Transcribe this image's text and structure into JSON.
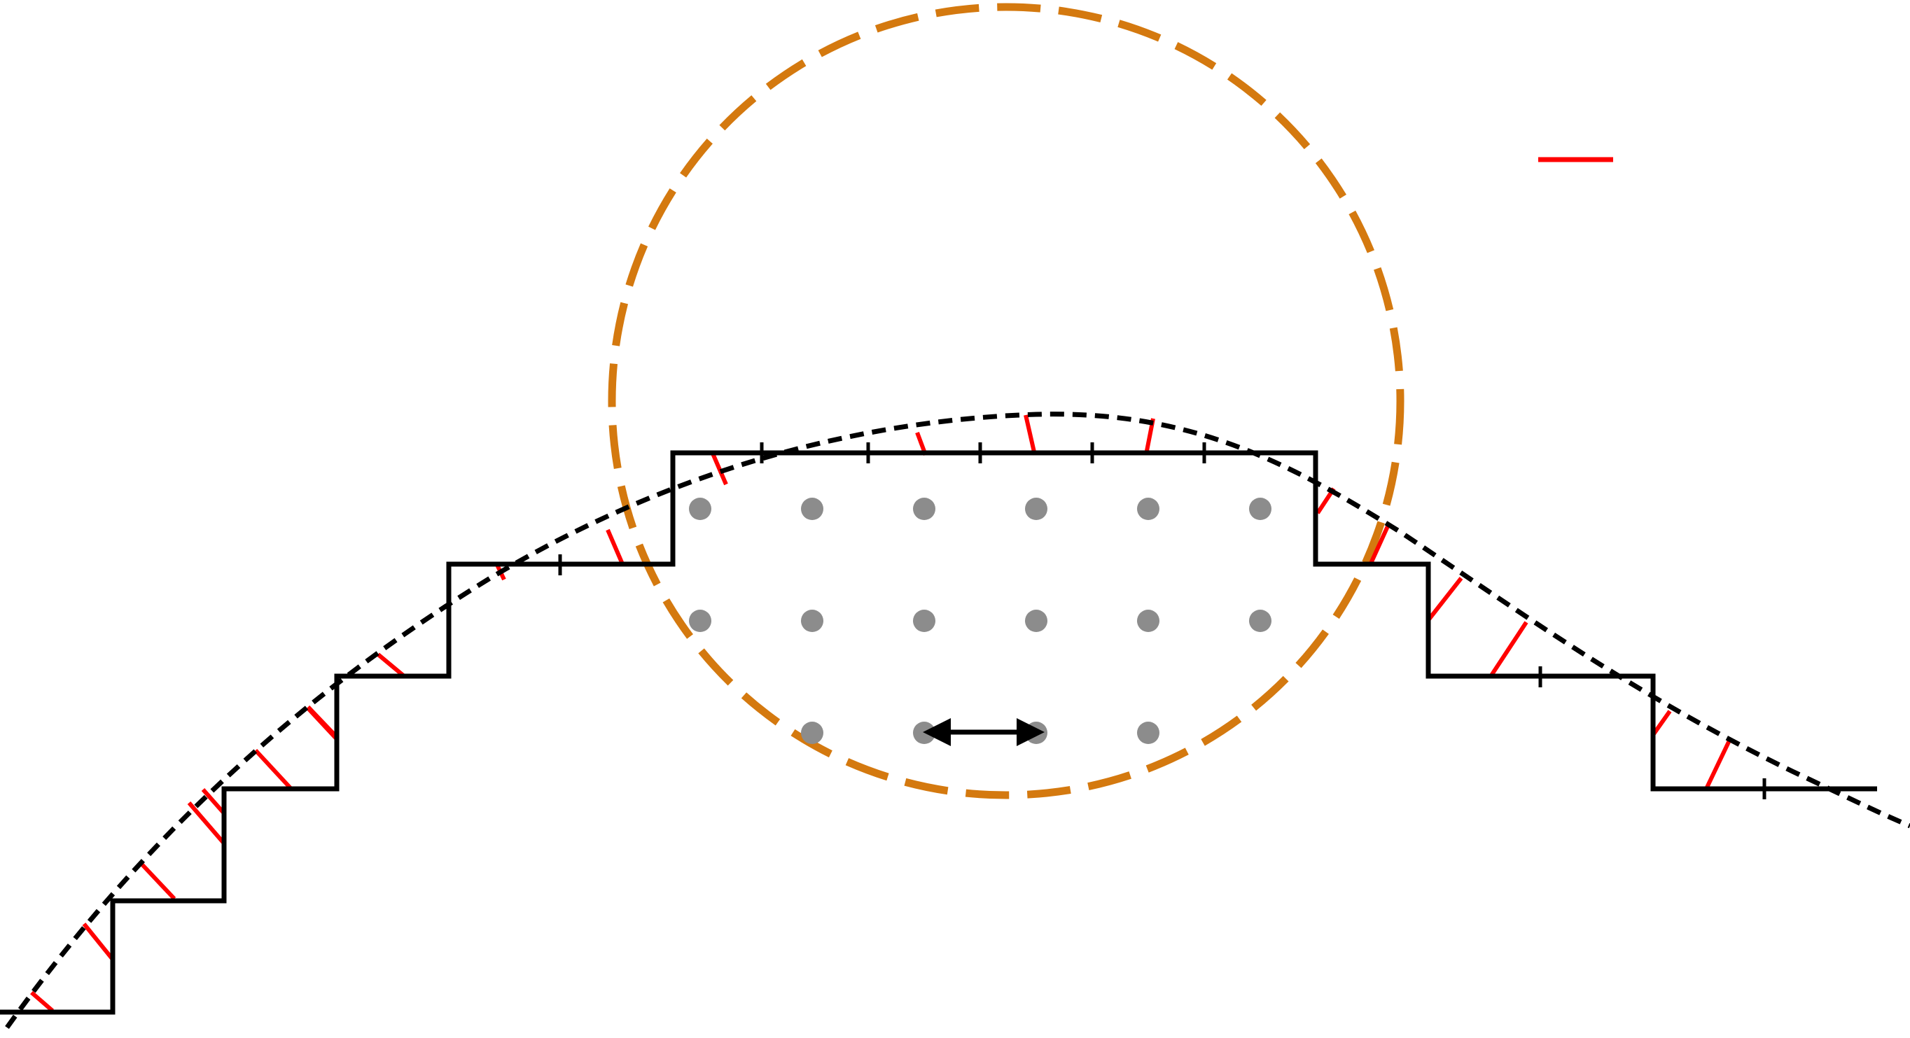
{
  "figure": {
    "description_none": true
  },
  "colors": {
    "staircase": "#000000",
    "curve": "#000000",
    "normals": "#ff0000",
    "circle": "#d4790f",
    "grid_points": "#8c8c8c",
    "arrow": "#000000",
    "legend_swatch": "#ff0000",
    "background": "#ffffff"
  },
  "legend": {
    "items": [
      {
        "label": "",
        "color": "#ff0000",
        "style": "solid-line"
      }
    ]
  },
  "elements": {
    "staircase": "stepped-boundary",
    "curve": "dashed-smooth-interface",
    "circle": "dashed-neighborhood-circle",
    "points": "grid-point-markers",
    "arrow": "double-headed-spacing-arrow",
    "normals": "red-distance-segments"
  }
}
